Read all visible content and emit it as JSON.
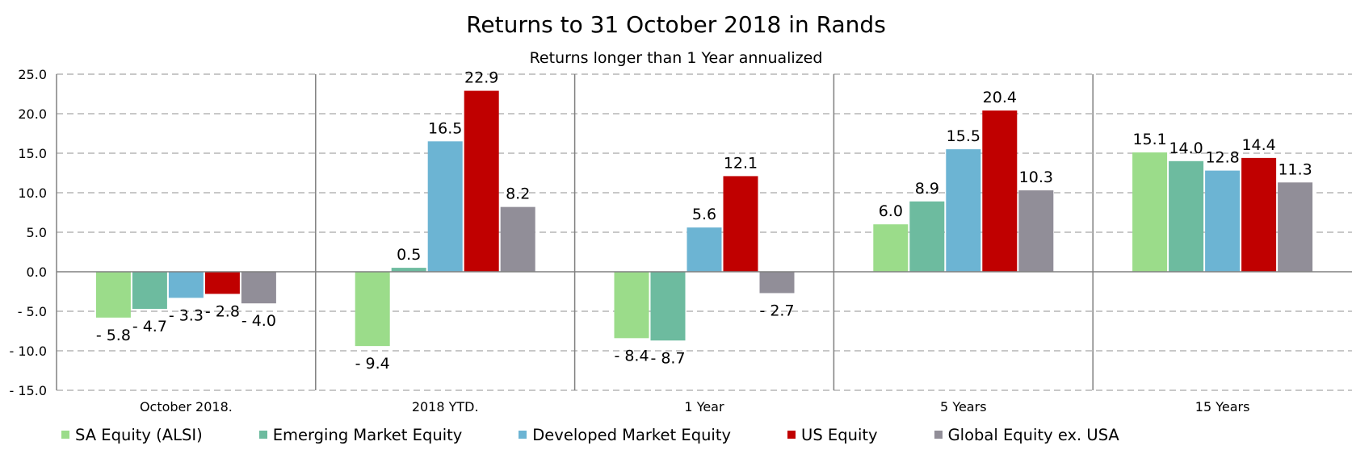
{
  "chart_data": {
    "type": "bar",
    "title": "Returns to 31 October 2018 in Rands",
    "subtitle": "Returns longer than 1 Year annualized",
    "categories": [
      "October 2018.",
      "2018 YTD.",
      "1 Year",
      "5 Years",
      "15 Years"
    ],
    "series": [
      {
        "name": "SA Equity (ALSI)",
        "color": "#9bdc8a",
        "values": [
          -5.8,
          -9.4,
          -8.4,
          6.0,
          15.1
        ]
      },
      {
        "name": "Emerging Market Equity",
        "color": "#6dbb9f",
        "values": [
          -4.7,
          0.5,
          -8.7,
          8.9,
          14.0
        ]
      },
      {
        "name": "Developed Market Equity",
        "color": "#6cb4d3",
        "values": [
          -3.3,
          16.5,
          5.6,
          15.5,
          12.8
        ]
      },
      {
        "name": "US Equity",
        "color": "#c00000",
        "values": [
          -2.8,
          22.9,
          12.1,
          20.4,
          14.4
        ]
      },
      {
        "name": "Global Equity ex. USA",
        "color": "#918e98",
        "values": [
          -4.0,
          8.2,
          -2.7,
          10.3,
          11.3
        ]
      }
    ],
    "ylim": [
      -15,
      25
    ],
    "yticks": [
      25,
      20,
      15,
      10,
      5,
      0,
      -5,
      -10,
      -15
    ],
    "ytick_labels": [
      "25.0",
      "20.0",
      "15.0",
      "10.0",
      "5.0",
      "0.0",
      "- 5.0",
      "- 10.0",
      "- 15.0"
    ],
    "grid": true,
    "legend_position": "bottom"
  }
}
